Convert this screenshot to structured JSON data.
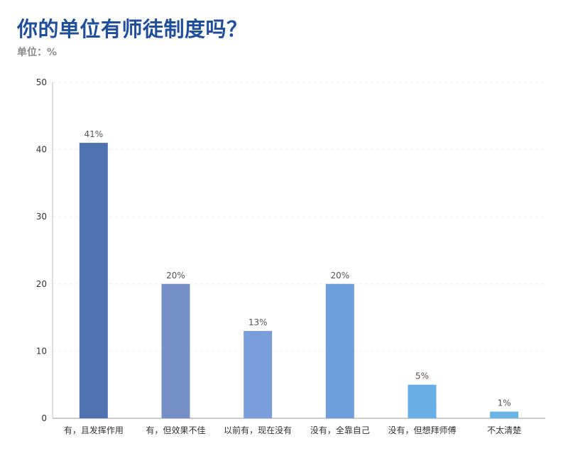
{
  "header": {
    "title": "你的单位有师徒制度吗？",
    "unit": "单位：%"
  },
  "chart_data": {
    "type": "bar",
    "categories": [
      "有，且发挥作用",
      "有，但效果不佳",
      "以前有，现在没有",
      "没有，全靠自己",
      "没有，但想拜师傅",
      "不太清楚"
    ],
    "values": [
      41,
      20,
      13,
      20,
      5,
      1
    ],
    "data_labels": [
      "41%",
      "20%",
      "13%",
      "20%",
      "5%",
      "1%"
    ],
    "bar_colors": [
      "#4e72b0",
      "#7490c6",
      "#7a9edc",
      "#6c9fdc",
      "#6aaee6",
      "#6ab4e8"
    ],
    "ylim": [
      0,
      50
    ],
    "yticks": [
      0,
      10,
      20,
      30,
      40,
      50
    ],
    "grid": true
  }
}
